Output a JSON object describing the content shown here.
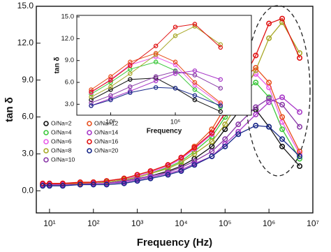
{
  "chart_data": [
    {
      "type": "scatter",
      "xscale": "log",
      "x_label": "Frequency (Hz)",
      "y_label": "tan δ",
      "xlim": [
        5,
        10000000
      ],
      "ylim": [
        -1.8,
        15
      ],
      "xticks": [
        {
          "value": 10,
          "label": "10¹"
        },
        {
          "value": 100,
          "label": "10²"
        },
        {
          "value": 1000,
          "label": "10³"
        },
        {
          "value": 10000,
          "label": "10⁴"
        },
        {
          "value": 100000,
          "label": "10⁵"
        },
        {
          "value": 1000000,
          "label": "10⁶"
        },
        {
          "value": 10000000,
          "label": "10⁷"
        }
      ],
      "yticks": [
        {
          "value": 0,
          "label": "0.0"
        },
        {
          "value": 3,
          "label": "3.0"
        },
        {
          "value": 6,
          "label": "6.0"
        },
        {
          "value": 9,
          "label": "9.0"
        },
        {
          "value": 12,
          "label": "12.0"
        },
        {
          "value": 15,
          "label": "15.0"
        }
      ],
      "legend": "lower left",
      "grid": false,
      "x": [
        7,
        10,
        20,
        50,
        100,
        200,
        500,
        1000,
        2000,
        5000,
        10000,
        20000,
        50000,
        100000,
        200000,
        500000,
        1000000,
        2000000,
        5000000
      ],
      "series": [
        {
          "name": "O/Na=2",
          "color": "#111111",
          "values": [
            0.5,
            0.5,
            0.5,
            0.5,
            0.6,
            0.6,
            0.8,
            1.0,
            1.2,
            1.6,
            2.0,
            2.6,
            3.6,
            5.0,
            6.4,
            6.6,
            5.2,
            3.6,
            2.0
          ]
        },
        {
          "name": "O/Na=4",
          "color": "#3cc83c",
          "values": [
            0.5,
            0.5,
            0.5,
            0.6,
            0.6,
            0.7,
            0.9,
            1.1,
            1.4,
            1.9,
            2.4,
            3.2,
            4.4,
            6.0,
            7.8,
            8.8,
            7.6,
            5.0,
            2.6
          ]
        },
        {
          "name": "O/Na=6",
          "color": "#e85ce8",
          "values": [
            0.5,
            0.5,
            0.5,
            0.6,
            0.6,
            0.7,
            0.9,
            1.2,
            1.5,
            2.0,
            2.6,
            3.4,
            4.6,
            6.4,
            8.4,
            9.5,
            8.4,
            5.6,
            3.0
          ]
        },
        {
          "name": "O/Na=8",
          "color": "#a8a828",
          "values": [
            0.5,
            0.5,
            0.5,
            0.6,
            0.6,
            0.7,
            0.9,
            1.1,
            1.4,
            1.8,
            2.3,
            3.0,
            4.0,
            5.4,
            7.2,
            9.8,
            12.4,
            13.7,
            11.2
          ]
        },
        {
          "name": "O/Na=10",
          "color": "#8a3aa8",
          "values": [
            0.5,
            0.5,
            0.5,
            0.5,
            0.6,
            0.6,
            0.8,
            1.0,
            1.2,
            1.5,
            1.9,
            2.4,
            3.2,
            4.2,
            5.4,
            6.8,
            7.5,
            7.0,
            5.2
          ]
        },
        {
          "name": "O/Na=12",
          "color": "#e8501e",
          "values": [
            0.5,
            0.5,
            0.6,
            0.6,
            0.7,
            0.8,
            1.0,
            1.3,
            1.6,
            2.1,
            2.7,
            3.6,
            5.0,
            6.8,
            8.8,
            10.0,
            8.8,
            6.0,
            3.2
          ]
        },
        {
          "name": "O/Na=14",
          "color": "#a838c8",
          "values": [
            0.5,
            0.5,
            0.5,
            0.5,
            0.6,
            0.6,
            0.7,
            0.9,
            1.1,
            1.4,
            1.7,
            2.2,
            2.8,
            3.8,
            4.8,
            6.2,
            7.2,
            7.6,
            6.4
          ]
        },
        {
          "name": "O/Na=16",
          "color": "#e01010",
          "values": [
            0.6,
            0.6,
            0.6,
            0.7,
            0.7,
            0.8,
            1.0,
            1.3,
            1.6,
            2.1,
            2.7,
            3.5,
            4.7,
            6.3,
            8.3,
            11.0,
            13.6,
            14.0,
            10.8
          ]
        },
        {
          "name": "O/Na=20",
          "color": "#18288a",
          "values": [
            0.4,
            0.4,
            0.4,
            0.5,
            0.5,
            0.5,
            0.6,
            0.8,
            1.0,
            1.3,
            1.6,
            2.1,
            2.8,
            3.6,
            4.6,
            5.3,
            5.2,
            4.2,
            2.8
          ]
        }
      ]
    },
    {
      "type": "scatter",
      "xscale": "log",
      "x_label": "Frequency",
      "y_label": "tan δ",
      "xlim": [
        30000,
        15000000
      ],
      "ylim": [
        1.5,
        15.2
      ],
      "xticks": [
        {
          "value": 100000,
          "label": "10⁵"
        },
        {
          "value": 1000000,
          "label": "10⁶"
        }
      ],
      "yticks": [
        {
          "value": 3,
          "label": "3.0"
        },
        {
          "value": 6,
          "label": "6.0"
        },
        {
          "value": 9,
          "label": "9.0"
        },
        {
          "value": 12,
          "label": "12.0"
        },
        {
          "value": 15,
          "label": "15.0"
        }
      ],
      "grid": false,
      "x": [
        50000,
        100000,
        200000,
        500000,
        1000000,
        2000000,
        5000000
      ],
      "series": [
        {
          "color": "#111111",
          "values": [
            3.6,
            5.0,
            6.4,
            6.6,
            5.2,
            3.6,
            2.0
          ]
        },
        {
          "color": "#3cc83c",
          "values": [
            4.4,
            6.0,
            7.8,
            8.8,
            7.6,
            5.0,
            2.6
          ]
        },
        {
          "color": "#e85ce8",
          "values": [
            4.6,
            6.4,
            8.4,
            9.5,
            8.4,
            5.6,
            3.0
          ]
        },
        {
          "color": "#a8a828",
          "values": [
            4.0,
            5.4,
            7.2,
            9.8,
            12.4,
            13.7,
            11.2
          ]
        },
        {
          "color": "#8a3aa8",
          "values": [
            3.2,
            4.2,
            5.4,
            6.8,
            7.5,
            7.0,
            5.2
          ]
        },
        {
          "color": "#e8501e",
          "values": [
            5.0,
            6.8,
            8.8,
            10.0,
            8.8,
            6.0,
            3.2
          ]
        },
        {
          "color": "#a838c8",
          "values": [
            2.8,
            3.8,
            4.8,
            6.2,
            7.2,
            7.6,
            6.4
          ]
        },
        {
          "color": "#e01010",
          "values": [
            4.7,
            6.3,
            8.3,
            11.0,
            13.6,
            14.0,
            10.8
          ]
        },
        {
          "color": "#18288a",
          "values": [
            2.8,
            3.6,
            4.6,
            5.3,
            5.2,
            4.2,
            2.8
          ]
        }
      ]
    }
  ]
}
